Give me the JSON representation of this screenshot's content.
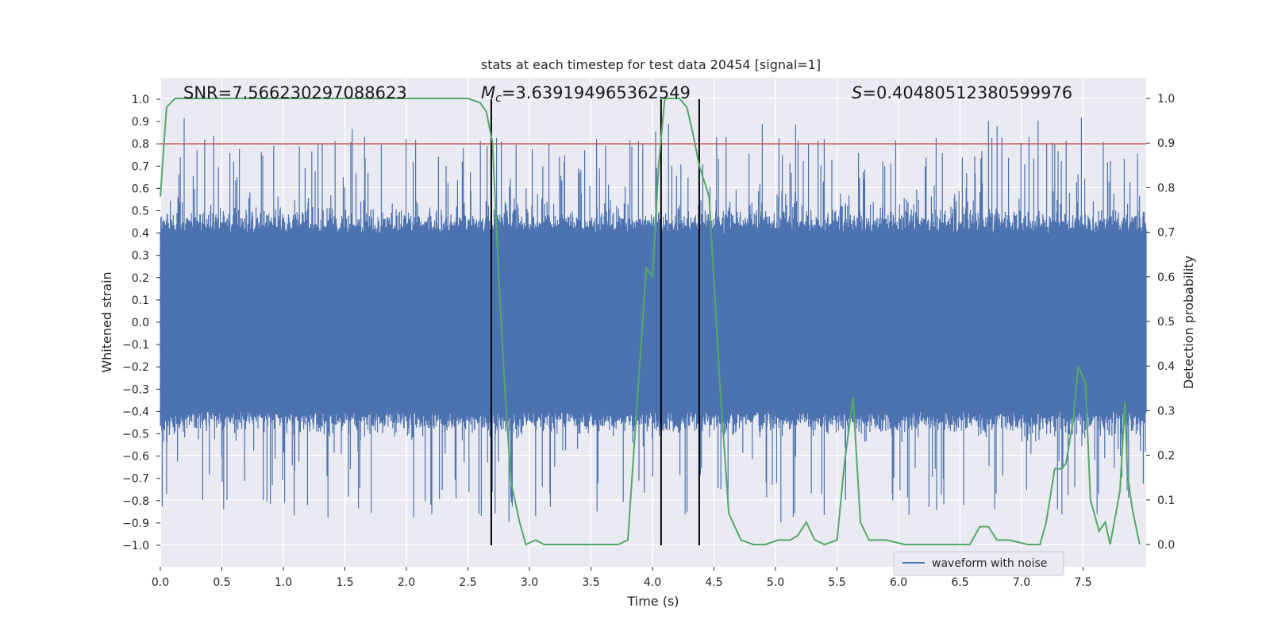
{
  "chart_data": {
    "type": "line",
    "title": "stats at each timestep for test data 20454 [signal=1]",
    "xlabel": "Time (s)",
    "ylabel": "Whitened strain",
    "y2label": "Detection probability",
    "xlim": [
      0.0,
      8.0
    ],
    "ylim": [
      -1.1,
      1.1
    ],
    "y2lim": [
      -0.05,
      1.05
    ],
    "xticks": [
      "0.0",
      "0.5",
      "1.0",
      "1.5",
      "2.0",
      "2.5",
      "3.0",
      "3.5",
      "4.0",
      "4.5",
      "5.0",
      "5.5",
      "6.0",
      "6.5",
      "7.0",
      "7.5"
    ],
    "yticks": [
      "1.0",
      "0.9",
      "0.8",
      "0.7",
      "0.6",
      "0.5",
      "0.4",
      "0.3",
      "0.2",
      "0.1",
      "0.0",
      "−0.1",
      "−0.2",
      "−0.3",
      "−0.4",
      "−0.5",
      "−0.6",
      "−0.7",
      "−0.8",
      "−0.9",
      "−1.0"
    ],
    "y2ticks": [
      "1.0",
      "0.9",
      "0.8",
      "0.7",
      "0.6",
      "0.5",
      "0.4",
      "0.3",
      "0.2",
      "0.1",
      "0.0"
    ],
    "threshold": {
      "y": 0.8,
      "color": "#c44e52"
    },
    "vlines": [
      2.69,
      4.07,
      4.38
    ],
    "annotations": {
      "snr": "SNR=7.566230297088623",
      "mc_symbol": "M",
      "mc_sub": "c",
      "mc_value": "=3.639194965362549",
      "s_symbol": "S",
      "s_value": "=0.40480512380599976"
    },
    "legend": {
      "label": "waveform with noise",
      "location": "lower-right"
    },
    "series": [
      {
        "name": "waveform with noise",
        "color": "#4c72b0",
        "axis": "left",
        "description": "whitened strain, dense noise filling roughly -0.55..0.6"
      },
      {
        "name": "detection probability",
        "color": "#55a868",
        "axis": "right",
        "x": [
          0.0,
          0.05,
          0.12,
          0.3,
          0.6,
          1.0,
          1.5,
          2.0,
          2.3,
          2.5,
          2.6,
          2.65,
          2.7,
          2.75,
          2.8,
          2.85,
          2.92,
          2.97,
          3.05,
          3.12,
          3.25,
          3.4,
          3.55,
          3.72,
          3.8,
          3.87,
          3.95,
          4.0,
          4.05,
          4.1,
          4.15,
          4.22,
          4.28,
          4.33,
          4.38,
          4.46,
          4.55,
          4.62,
          4.72,
          4.82,
          4.92,
          5.02,
          5.12,
          5.18,
          5.25,
          5.32,
          5.4,
          5.5,
          5.56,
          5.63,
          5.69,
          5.76,
          5.9,
          6.05,
          6.25,
          6.45,
          6.58,
          6.66,
          6.73,
          6.8,
          6.9,
          7.05,
          7.15,
          7.2,
          7.27,
          7.32,
          7.36,
          7.42,
          7.46,
          7.52,
          7.56,
          7.63,
          7.68,
          7.72,
          7.8,
          7.84,
          7.86,
          7.9,
          7.96
        ],
        "y": [
          0.78,
          0.98,
          1.0,
          1.0,
          1.0,
          1.0,
          1.0,
          1.0,
          1.0,
          1.0,
          0.99,
          0.97,
          0.9,
          0.6,
          0.35,
          0.14,
          0.05,
          0.0,
          0.01,
          0.0,
          0.0,
          0.0,
          0.0,
          0.0,
          0.01,
          0.3,
          0.62,
          0.6,
          0.85,
          1.0,
          1.0,
          1.0,
          0.98,
          0.92,
          0.85,
          0.78,
          0.35,
          0.07,
          0.01,
          0.0,
          0.0,
          0.01,
          0.01,
          0.02,
          0.05,
          0.01,
          0.0,
          0.01,
          0.18,
          0.33,
          0.05,
          0.01,
          0.01,
          0.0,
          0.0,
          0.0,
          0.0,
          0.04,
          0.04,
          0.01,
          0.01,
          0.0,
          0.0,
          0.05,
          0.17,
          0.17,
          0.18,
          0.28,
          0.4,
          0.36,
          0.1,
          0.03,
          0.05,
          0.0,
          0.12,
          0.32,
          0.16,
          0.08,
          0.0
        ]
      }
    ]
  }
}
